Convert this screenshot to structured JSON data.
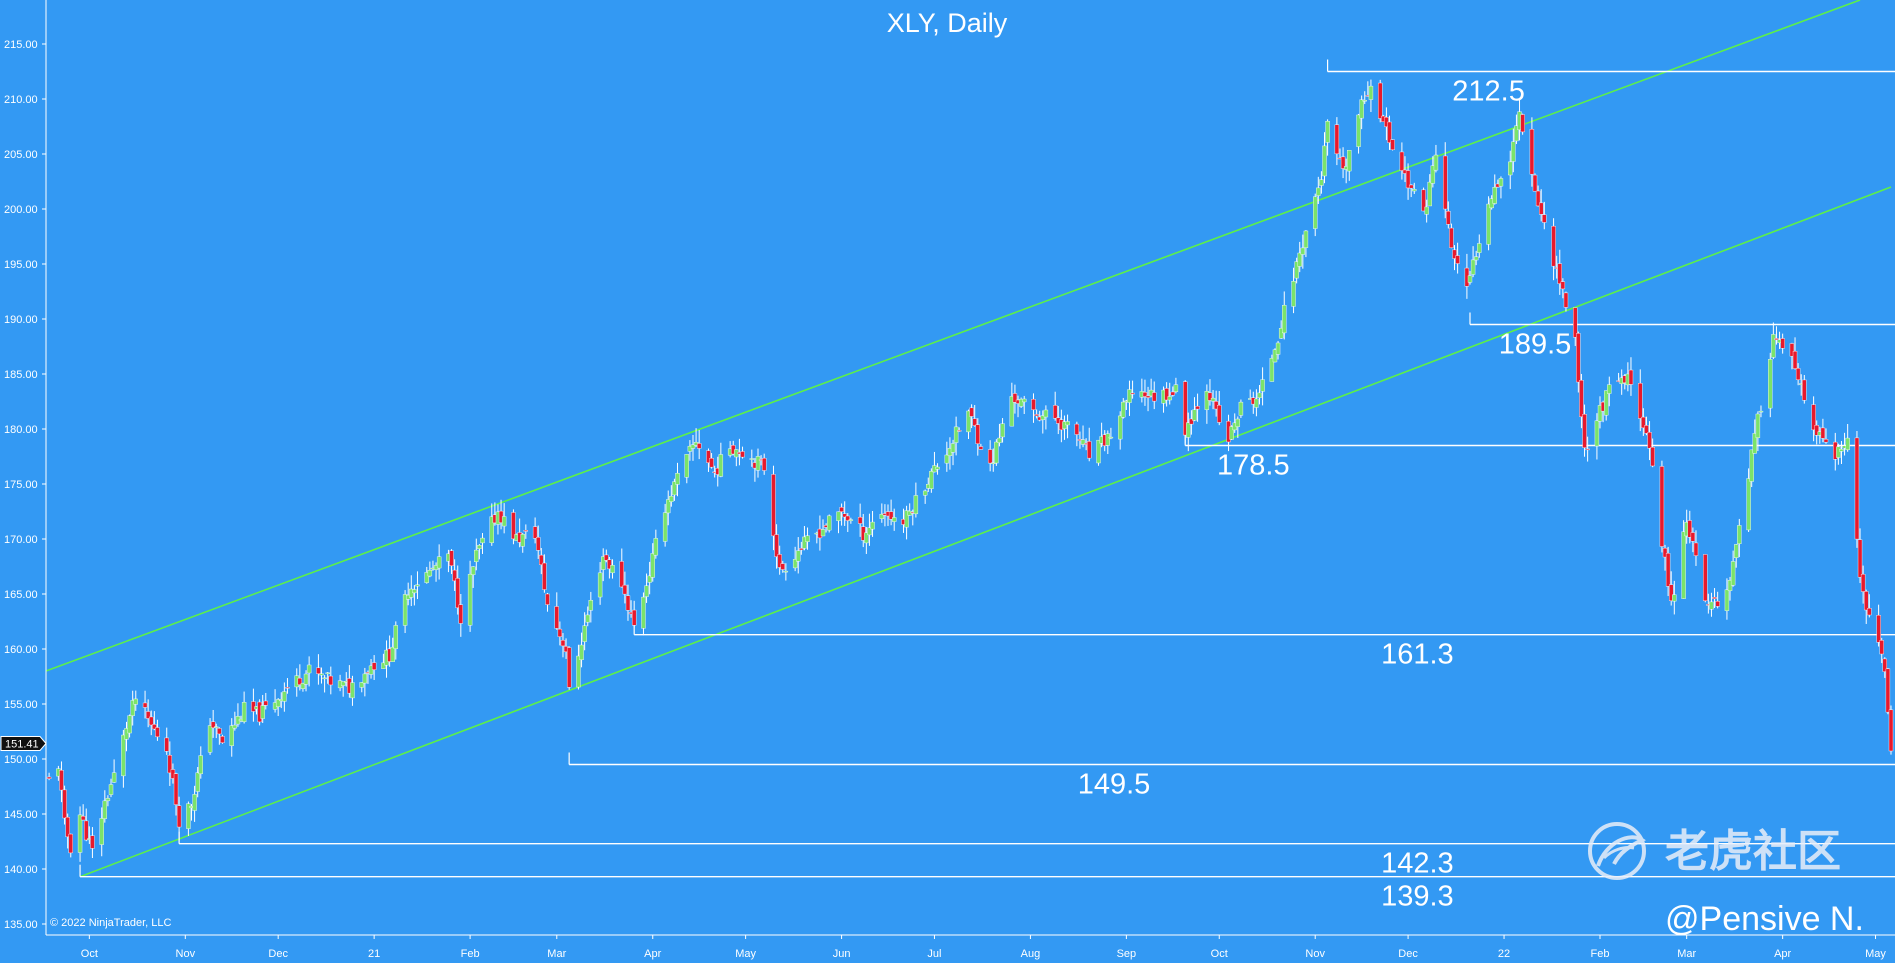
{
  "chart_data": {
    "type": "candlestick",
    "title": "XLY, Daily",
    "copyright": "© 2022 NinjaTrader, LLC",
    "watermark": "老虎社区",
    "author": "@Pensive N.",
    "last_price_label": "151.41",
    "last_price": 151.41,
    "ylim": [
      134,
      219
    ],
    "y_ticks": [
      {
        "value": 135,
        "label": "135.00"
      },
      {
        "value": 140,
        "label": "140.00"
      },
      {
        "value": 145,
        "label": "145.00"
      },
      {
        "value": 150,
        "label": "150.00"
      },
      {
        "value": 155,
        "label": "155.00"
      },
      {
        "value": 160,
        "label": "160.00"
      },
      {
        "value": 165,
        "label": "165.00"
      },
      {
        "value": 170,
        "label": "170.00"
      },
      {
        "value": 175,
        "label": "175.00"
      },
      {
        "value": 180,
        "label": "180.00"
      },
      {
        "value": 185,
        "label": "185.00"
      },
      {
        "value": 190,
        "label": "190.00"
      },
      {
        "value": 195,
        "label": "195.00"
      },
      {
        "value": 200,
        "label": "200.00"
      },
      {
        "value": 205,
        "label": "205.00"
      },
      {
        "value": 210,
        "label": "210.00"
      },
      {
        "value": 215,
        "label": "215.00"
      }
    ],
    "x_range": [
      "2020-09-17",
      "2022-05-06"
    ],
    "x_ticks": [
      {
        "date": "2020-10-01",
        "label": "Oct"
      },
      {
        "date": "2020-11-01",
        "label": "Nov"
      },
      {
        "date": "2020-12-01",
        "label": "Dec"
      },
      {
        "date": "2021-01-01",
        "label": "21"
      },
      {
        "date": "2021-02-01",
        "label": "Feb"
      },
      {
        "date": "2021-03-01",
        "label": "Mar"
      },
      {
        "date": "2021-04-01",
        "label": "Apr"
      },
      {
        "date": "2021-05-01",
        "label": "May"
      },
      {
        "date": "2021-06-01",
        "label": "Jun"
      },
      {
        "date": "2021-07-01",
        "label": "Jul"
      },
      {
        "date": "2021-08-01",
        "label": "Aug"
      },
      {
        "date": "2021-09-01",
        "label": "Sep"
      },
      {
        "date": "2021-10-01",
        "label": "Oct"
      },
      {
        "date": "2021-11-01",
        "label": "Nov"
      },
      {
        "date": "2021-12-01",
        "label": "Dec"
      },
      {
        "date": "2022-01-01",
        "label": "22"
      },
      {
        "date": "2022-02-01",
        "label": "Feb"
      },
      {
        "date": "2022-03-01",
        "label": "Mar"
      },
      {
        "date": "2022-04-01",
        "label": "Apr"
      },
      {
        "date": "2022-05-01",
        "label": "May"
      }
    ],
    "price_path": [
      [
        "2020-09-18",
        148.0
      ],
      [
        "2020-09-21",
        149.5
      ],
      [
        "2020-09-23",
        144.0
      ],
      [
        "2020-09-25",
        142.0
      ],
      [
        "2020-09-28",
        145.0
      ],
      [
        "2020-10-02",
        141.5
      ],
      [
        "2020-10-06",
        146.0
      ],
      [
        "2020-10-09",
        148.5
      ],
      [
        "2020-10-13",
        153.0
      ],
      [
        "2020-10-16",
        155.5
      ],
      [
        "2020-10-21",
        153.0
      ],
      [
        "2020-10-26",
        151.0
      ],
      [
        "2020-10-30",
        144.5
      ],
      [
        "2020-11-03",
        146.0
      ],
      [
        "2020-11-09",
        153.5
      ],
      [
        "2020-11-13",
        151.5
      ],
      [
        "2020-11-20",
        154.5
      ],
      [
        "2020-11-25",
        154.0
      ],
      [
        "2020-12-04",
        156.5
      ],
      [
        "2020-12-11",
        158.0
      ],
      [
        "2020-12-18",
        157.0
      ],
      [
        "2020-12-24",
        156.5
      ],
      [
        "2020-12-31",
        158.5
      ],
      [
        "2021-01-06",
        159.5
      ],
      [
        "2021-01-12",
        165.5
      ],
      [
        "2021-01-19",
        167.0
      ],
      [
        "2021-01-25",
        168.5
      ],
      [
        "2021-01-29",
        163.0
      ],
      [
        "2021-02-03",
        168.5
      ],
      [
        "2021-02-10",
        172.5
      ],
      [
        "2021-02-16",
        170.0
      ],
      [
        "2021-02-22",
        170.5
      ],
      [
        "2021-02-26",
        164.0
      ],
      [
        "2021-03-04",
        160.0
      ],
      [
        "2021-03-05",
        156.0
      ],
      [
        "2021-03-10",
        162.0
      ],
      [
        "2021-03-16",
        168.5
      ],
      [
        "2021-03-22",
        166.0
      ],
      [
        "2021-03-26",
        162.0
      ],
      [
        "2021-03-31",
        167.0
      ],
      [
        "2021-04-05",
        173.0
      ],
      [
        "2021-04-09",
        175.5
      ],
      [
        "2021-04-15",
        179.0
      ],
      [
        "2021-04-21",
        176.0
      ],
      [
        "2021-04-26",
        178.5
      ],
      [
        "2021-04-30",
        178.0
      ],
      [
        "2021-05-07",
        176.5
      ],
      [
        "2021-05-12",
        167.0
      ],
      [
        "2021-05-18",
        169.0
      ],
      [
        "2021-05-24",
        170.5
      ],
      [
        "2021-06-01",
        172.5
      ],
      [
        "2021-06-08",
        170.5
      ],
      [
        "2021-06-14",
        172.5
      ],
      [
        "2021-06-21",
        171.5
      ],
      [
        "2021-06-28",
        175.0
      ],
      [
        "2021-07-06",
        178.5
      ],
      [
        "2021-07-12",
        181.5
      ],
      [
        "2021-07-19",
        176.5
      ],
      [
        "2021-07-26",
        183.0
      ],
      [
        "2021-08-02",
        181.5
      ],
      [
        "2021-08-09",
        181.0
      ],
      [
        "2021-08-16",
        179.5
      ],
      [
        "2021-08-20",
        177.5
      ],
      [
        "2021-08-27",
        179.5
      ],
      [
        "2021-09-03",
        183.5
      ],
      [
        "2021-09-10",
        183.0
      ],
      [
        "2021-09-17",
        183.5
      ],
      [
        "2021-09-20",
        180.0
      ],
      [
        "2021-09-27",
        184.0
      ],
      [
        "2021-10-01",
        180.5
      ],
      [
        "2021-10-04",
        179.0
      ],
      [
        "2021-10-08",
        182.0
      ],
      [
        "2021-10-14",
        183.0
      ],
      [
        "2021-10-20",
        188.5
      ],
      [
        "2021-10-27",
        196.0
      ],
      [
        "2021-11-03",
        203.0
      ],
      [
        "2021-11-05",
        207.5
      ],
      [
        "2021-11-10",
        203.0
      ],
      [
        "2021-11-15",
        208.5
      ],
      [
        "2021-11-19",
        211.5
      ],
      [
        "2021-11-24",
        207.0
      ],
      [
        "2021-11-30",
        203.0
      ],
      [
        "2021-12-06",
        199.5
      ],
      [
        "2021-12-10",
        205.0
      ],
      [
        "2021-12-15",
        196.5
      ],
      [
        "2021-12-20",
        192.5
      ],
      [
        "2021-12-27",
        201.0
      ],
      [
        "2022-01-03",
        204.5
      ],
      [
        "2022-01-06",
        209.0
      ],
      [
        "2022-01-12",
        200.5
      ],
      [
        "2022-01-19",
        193.5
      ],
      [
        "2022-01-24",
        188.0
      ],
      [
        "2022-01-27",
        178.0
      ],
      [
        "2022-01-31",
        181.0
      ],
      [
        "2022-02-04",
        183.5
      ],
      [
        "2022-02-10",
        184.5
      ],
      [
        "2022-02-16",
        180.0
      ],
      [
        "2022-02-24",
        164.0
      ],
      [
        "2022-03-01",
        172.0
      ],
      [
        "2022-03-07",
        164.0
      ],
      [
        "2022-03-14",
        165.0
      ],
      [
        "2022-03-21",
        176.0
      ],
      [
        "2022-03-29",
        188.5
      ],
      [
        "2022-04-04",
        186.0
      ],
      [
        "2022-04-11",
        180.0
      ],
      [
        "2022-04-18",
        177.5
      ],
      [
        "2022-04-22",
        178.5
      ],
      [
        "2022-04-26",
        166.5
      ],
      [
        "2022-04-29",
        163.0
      ],
      [
        "2022-05-04",
        158.0
      ],
      [
        "2022-05-06",
        151.4
      ]
    ],
    "price_levels": [
      {
        "value": 212.5,
        "label": "212.5",
        "start": "2021-11-05",
        "label_date": "2021-12-27"
      },
      {
        "value": 189.5,
        "label": "189.5",
        "start": "2021-12-21",
        "label_date": "2022-01-11"
      },
      {
        "value": 178.5,
        "label": "178.5",
        "start": "2021-09-20",
        "label_date": "2021-10-12"
      },
      {
        "value": 161.3,
        "label": "161.3",
        "start": "2021-03-26",
        "label_date": "2021-12-04"
      },
      {
        "value": 149.5,
        "label": "149.5",
        "start": "2021-03-05",
        "label_date": "2021-08-28"
      },
      {
        "value": 142.3,
        "label": "142.3",
        "start": "2020-10-30",
        "label_date": "2021-12-04"
      },
      {
        "value": 139.3,
        "label": "139.3",
        "start": "2020-09-28",
        "label_date": "2021-12-04"
      }
    ],
    "channel_lines": [
      {
        "name": "upper",
        "from": [
          "2020-09-17",
          158.0
        ],
        "to": [
          "2022-04-26",
          219.0
        ]
      },
      {
        "name": "lower",
        "from": [
          "2020-09-28",
          139.3
        ],
        "to": [
          "2022-05-06",
          202.0
        ]
      }
    ],
    "colors": {
      "background": "#3399f3",
      "up_candle": "#7be36a",
      "down_candle": "#e8192c",
      "level_line": "#ffffff",
      "channel_line": "#5cf04a",
      "text": "#ffffff"
    }
  }
}
